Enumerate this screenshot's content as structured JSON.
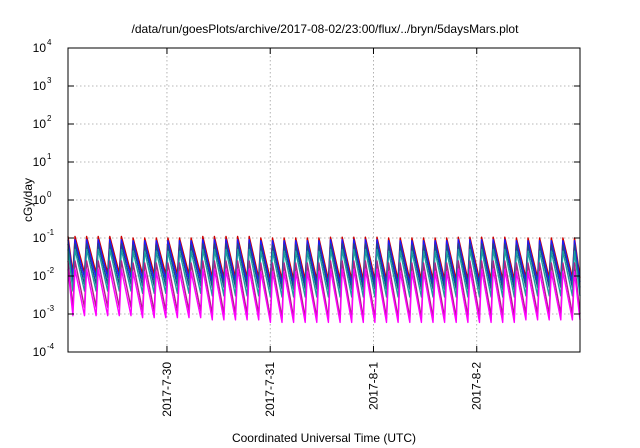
{
  "chart_data": {
    "type": "line",
    "title": "/data/run/goesPlots/archive/2017-08-02/23:00/flux/../bryn/5daysMars.plot",
    "xlabel": "Coordinated Universal Time (UTC)",
    "ylabel": "cGy/day",
    "yscale": "log",
    "ylim": [
      0.0001,
      10000
    ],
    "xlim": [
      "2017-07-29T01:00",
      "2017-08-03T00:00"
    ],
    "grid": true,
    "y_ticks": [
      {
        "base": "10",
        "exp": "-4",
        "value": 0.0001
      },
      {
        "base": "10",
        "exp": "-3",
        "value": 0.001
      },
      {
        "base": "10",
        "exp": "-2",
        "value": 0.01
      },
      {
        "base": "10",
        "exp": "-1",
        "value": 0.1
      },
      {
        "base": "10",
        "exp": "0",
        "value": 1
      },
      {
        "base": "10",
        "exp": "1",
        "value": 10
      },
      {
        "base": "10",
        "exp": "2",
        "value": 100
      },
      {
        "base": "10",
        "exp": "3",
        "value": 1000
      },
      {
        "base": "10",
        "exp": "4",
        "value": 10000
      }
    ],
    "x_ticks": [
      {
        "label": "2017-7-30",
        "value": "2017-07-30T00:00"
      },
      {
        "label": "2017-7-31",
        "value": "2017-07-31T00:00"
      },
      {
        "label": "2017-8-1",
        "value": "2017-08-01T00:00"
      },
      {
        "label": "2017-8-2",
        "value": "2017-08-02T00:00"
      }
    ],
    "sawtooth_period_hours": 2.7,
    "series": [
      {
        "color": "#cc0000",
        "peaks": [
          0.11,
          0.1,
          0.11,
          0.1,
          0.105,
          0.1,
          0.105,
          0.1
        ],
        "troughs": [
          0.012,
          0.011,
          0.009,
          0.008,
          0.008,
          0.008,
          0.008,
          0.009
        ]
      },
      {
        "color": "#1a1aff",
        "peaks": [
          0.09,
          0.085,
          0.09,
          0.085,
          0.09,
          0.085,
          0.09,
          0.085
        ],
        "troughs": [
          0.009,
          0.008,
          0.007,
          0.006,
          0.006,
          0.006,
          0.006,
          0.007
        ]
      },
      {
        "color": "#1a4a8a",
        "peaks": [
          0.07,
          0.065,
          0.07,
          0.065,
          0.07,
          0.065,
          0.07,
          0.065
        ],
        "troughs": [
          0.006,
          0.0055,
          0.005,
          0.0045,
          0.0045,
          0.0045,
          0.0045,
          0.005
        ]
      },
      {
        "color": "#1aa0a0",
        "peaks": [
          0.05,
          0.045,
          0.05,
          0.045,
          0.05,
          0.045,
          0.05,
          0.045
        ],
        "troughs": [
          0.004,
          0.0035,
          0.003,
          0.0028,
          0.0028,
          0.0028,
          0.0028,
          0.003
        ]
      },
      {
        "color": "#b0208a",
        "peaks": [
          0.025,
          0.022,
          0.025,
          0.022,
          0.025,
          0.022,
          0.025,
          0.022
        ],
        "troughs": [
          0.0015,
          0.0012,
          0.001,
          0.0008,
          0.0008,
          0.0008,
          0.0009,
          0.001
        ]
      },
      {
        "color": "#ff00ff",
        "peaks": [
          0.015,
          0.013,
          0.015,
          0.013,
          0.015,
          0.013,
          0.015,
          0.013
        ],
        "troughs": [
          0.0009,
          0.0008,
          0.0007,
          0.0006,
          0.0006,
          0.0006,
          0.0006,
          0.0007
        ]
      }
    ]
  }
}
